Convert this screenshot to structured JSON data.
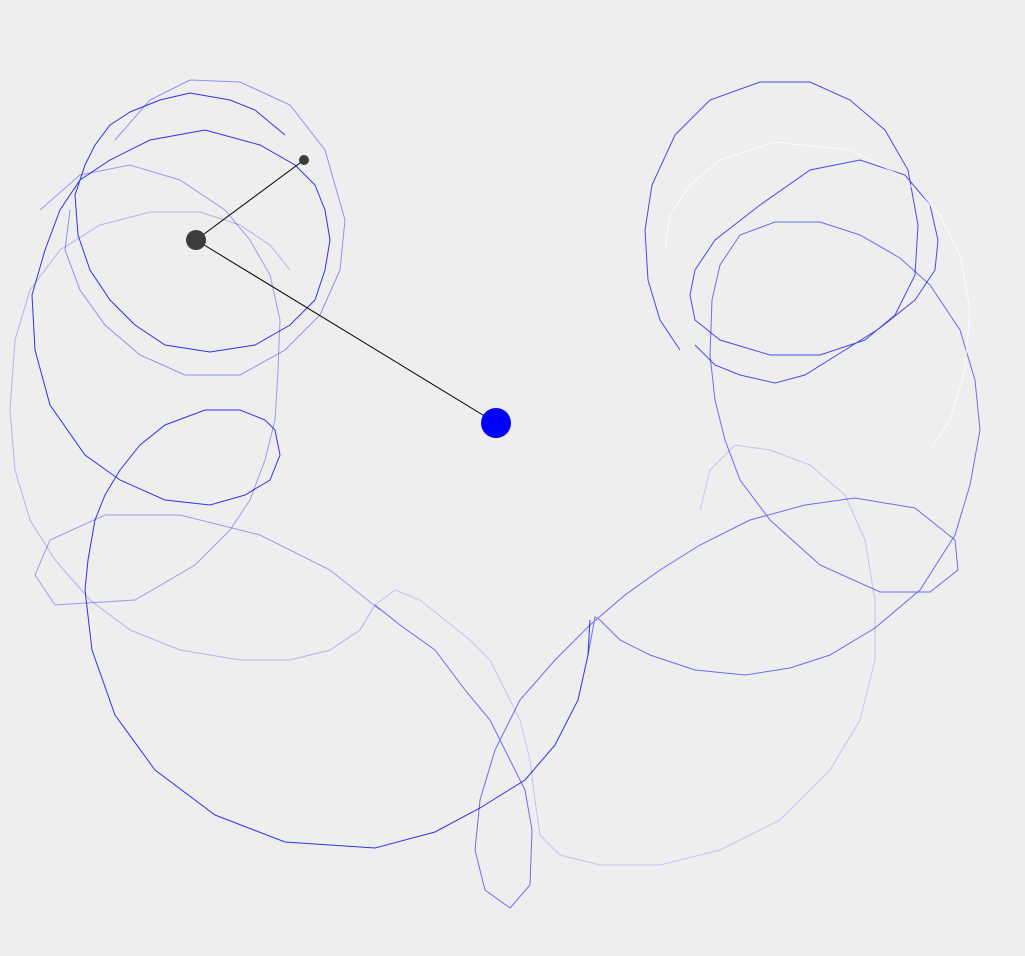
{
  "scene": {
    "background_color": "#eeeeee",
    "trail_color": "#0000ff",
    "arm_color": "#000000",
    "pivot_color": "#3c3c3c",
    "bob_color": "#0000ff"
  }
}
